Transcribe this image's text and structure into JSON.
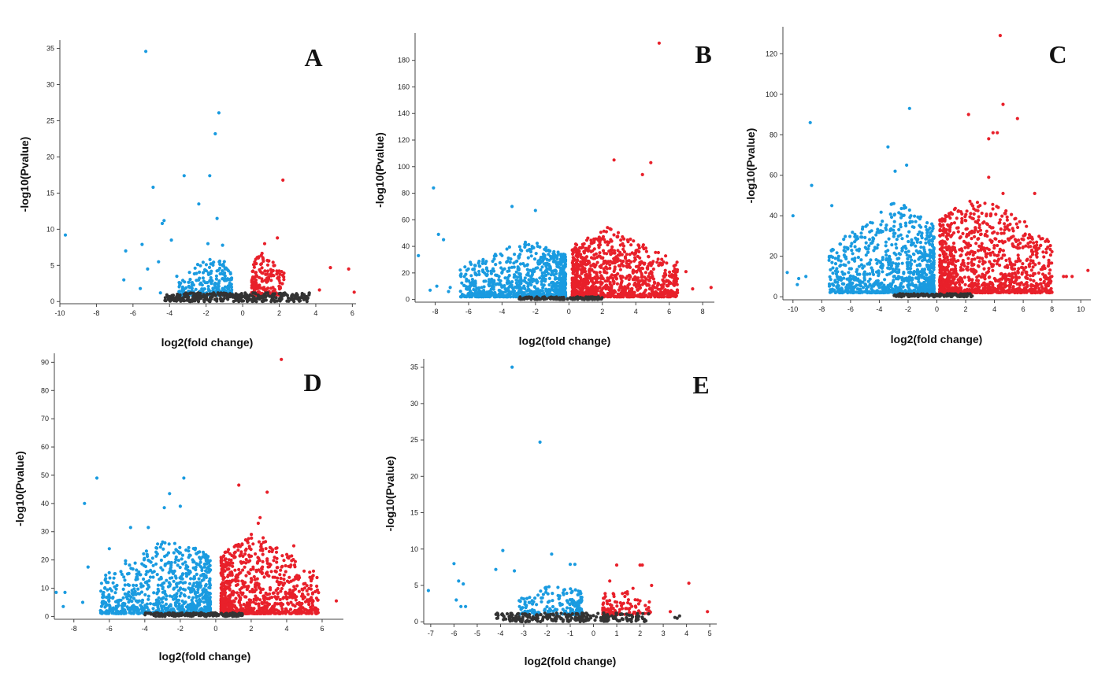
{
  "colors": {
    "down": "#1a9be0",
    "up": "#e8202a",
    "ns": "#333333",
    "axis": "#444444"
  },
  "chart_data": [
    {
      "type": "scatter",
      "panel_label": "A",
      "xlabel": "log2(fold change)",
      "ylabel": "-log10(Pvalue)",
      "xlim": [
        -10,
        6.2
      ],
      "ylim": [
        -0.3,
        35.5
      ],
      "xticks": [
        -10,
        -8,
        -6,
        -4,
        -2,
        0,
        2,
        4,
        6
      ],
      "yticks": [
        0,
        5,
        10,
        15,
        20,
        25,
        30,
        35
      ],
      "legend": "none",
      "points": [
        [
          -5.3,
          34.6,
          "down"
        ],
        [
          -1.3,
          26.1,
          "down"
        ],
        [
          -1.5,
          23.2,
          "down"
        ],
        [
          -1.8,
          17.4,
          "down"
        ],
        [
          -3.2,
          17.4,
          "down"
        ],
        [
          2.2,
          16.8,
          "up"
        ],
        [
          -4.9,
          15.8,
          "down"
        ],
        [
          -2.4,
          13.5,
          "down"
        ],
        [
          -1.4,
          11.5,
          "down"
        ],
        [
          -4.3,
          11.2,
          "down"
        ],
        [
          -9.7,
          9.2,
          "down"
        ],
        [
          1.9,
          8.8,
          "up"
        ],
        [
          -6.4,
          7.0,
          "down"
        ],
        [
          -4.4,
          10.8,
          "down"
        ],
        [
          -3.9,
          8.5,
          "down"
        ],
        [
          -1.9,
          8.0,
          "down"
        ],
        [
          -1.1,
          7.8,
          "down"
        ],
        [
          1.2,
          8.0,
          "up"
        ],
        [
          -5.5,
          7.9,
          "down"
        ],
        [
          -6.5,
          3.0,
          "down"
        ],
        [
          -4.6,
          5.5,
          "down"
        ],
        [
          -3.6,
          3.5,
          "down"
        ],
        [
          -5.6,
          1.8,
          "down"
        ],
        [
          -5.2,
          4.5,
          "down"
        ],
        [
          4.8,
          4.7,
          "up"
        ],
        [
          5.8,
          4.5,
          "up"
        ],
        [
          6.1,
          1.3,
          "up"
        ],
        [
          4.2,
          1.6,
          "up"
        ],
        [
          -4.5,
          1.2,
          "down"
        ]
      ],
      "clouds": [
        {
          "class": "down",
          "x0": -3.5,
          "x1": -0.6,
          "yMin": 0.9,
          "yMax": 6.5,
          "n": 260,
          "shape": "vee"
        },
        {
          "class": "up",
          "x0": 0.5,
          "x1": 2.3,
          "yMin": 0.9,
          "yMax": 7.0,
          "n": 190,
          "shape": "vee"
        },
        {
          "class": "ns",
          "x0": -4.3,
          "x1": 3.7,
          "yMin": 0,
          "yMax": 1.2,
          "n": 320,
          "shape": "band"
        }
      ]
    },
    {
      "type": "scatter",
      "panel_label": "B",
      "xlabel": "log2(fold change)",
      "ylabel": "-log10(Pvalue)",
      "xlim": [
        -9.2,
        8.7
      ],
      "ylim": [
        -2,
        197
      ],
      "xticks": [
        -8,
        -6,
        -4,
        -2,
        0,
        2,
        4,
        6,
        8
      ],
      "yticks": [
        0,
        20,
        40,
        60,
        80,
        100,
        120,
        140,
        160,
        180
      ],
      "legend": "none",
      "points": [
        [
          5.4,
          193,
          "up"
        ],
        [
          2.7,
          105,
          "up"
        ],
        [
          4.9,
          103,
          "up"
        ],
        [
          4.4,
          94,
          "up"
        ],
        [
          -8.1,
          84,
          "down"
        ],
        [
          -3.4,
          70,
          "down"
        ],
        [
          -2.0,
          67,
          "down"
        ],
        [
          -7.8,
          49,
          "down"
        ],
        [
          -9.0,
          33,
          "down"
        ],
        [
          -7.5,
          45,
          "down"
        ],
        [
          6.0,
          12,
          "up"
        ],
        [
          7.0,
          21,
          "up"
        ],
        [
          8.5,
          9,
          "up"
        ],
        [
          7.4,
          8,
          "up"
        ],
        [
          -7.9,
          10,
          "down"
        ],
        [
          -8.3,
          7,
          "down"
        ],
        [
          -7.2,
          6,
          "down"
        ],
        [
          -7.1,
          9,
          "down"
        ],
        [
          -5.9,
          28,
          "down"
        ],
        [
          -6.1,
          22,
          "down"
        ],
        [
          6.4,
          18,
          "up"
        ],
        [
          5.5,
          27,
          "up"
        ]
      ],
      "clouds": [
        {
          "class": "down",
          "x0": -6.5,
          "x1": -0.2,
          "yMin": 2,
          "yMax": 46,
          "n": 900,
          "shape": "vee"
        },
        {
          "class": "up",
          "x0": 0.2,
          "x1": 6.5,
          "yMin": 2,
          "yMax": 55,
          "n": 1050,
          "shape": "vee"
        },
        {
          "class": "ns",
          "x0": -3.0,
          "x1": 2.0,
          "yMin": 0,
          "yMax": 2.0,
          "n": 150,
          "shape": "band"
        }
      ]
    },
    {
      "type": "scatter",
      "panel_label": "C",
      "xlabel": "log2(fold change)",
      "ylabel": "-log10(Pvalue)",
      "xlim": [
        -10.7,
        10.7
      ],
      "ylim": [
        -1.5,
        131
      ],
      "xticks": [
        -10,
        -8,
        -6,
        -4,
        -2,
        0,
        2,
        4,
        6,
        8,
        10
      ],
      "yticks": [
        0,
        20,
        40,
        60,
        80,
        100,
        120
      ],
      "legend": "none",
      "points": [
        [
          4.4,
          129,
          "up"
        ],
        [
          4.6,
          95,
          "up"
        ],
        [
          -1.9,
          93,
          "down"
        ],
        [
          2.2,
          90,
          "up"
        ],
        [
          5.6,
          88,
          "up"
        ],
        [
          -8.8,
          86,
          "down"
        ],
        [
          4.2,
          81,
          "up"
        ],
        [
          3.9,
          81,
          "up"
        ],
        [
          3.6,
          78,
          "up"
        ],
        [
          -3.4,
          74,
          "down"
        ],
        [
          -2.1,
          65,
          "down"
        ],
        [
          -2.9,
          62,
          "down"
        ],
        [
          3.6,
          59,
          "up"
        ],
        [
          -8.7,
          55,
          "down"
        ],
        [
          -10.0,
          40,
          "down"
        ],
        [
          6.8,
          51,
          "up"
        ],
        [
          4.6,
          51,
          "up"
        ],
        [
          10.5,
          13,
          "up"
        ],
        [
          9.4,
          10,
          "up"
        ],
        [
          8.8,
          10,
          "up"
        ],
        [
          9.0,
          10,
          "up"
        ],
        [
          -10.4,
          12,
          "down"
        ],
        [
          -9.6,
          9,
          "down"
        ],
        [
          -9.7,
          6,
          "down"
        ],
        [
          -9.1,
          10,
          "down"
        ],
        [
          -7.3,
          45,
          "down"
        ],
        [
          6.1,
          37,
          "up"
        ],
        [
          6.8,
          25,
          "up"
        ]
      ],
      "clouds": [
        {
          "class": "down",
          "x0": -7.5,
          "x1": -0.2,
          "yMin": 2,
          "yMax": 48,
          "n": 950,
          "shape": "vee"
        },
        {
          "class": "up",
          "x0": 0.2,
          "x1": 8.0,
          "yMin": 2,
          "yMax": 52,
          "n": 1150,
          "shape": "vee"
        },
        {
          "class": "ns",
          "x0": -3.0,
          "x1": 2.5,
          "yMin": 0,
          "yMax": 1.5,
          "n": 140,
          "shape": "band"
        }
      ]
    },
    {
      "type": "scatter",
      "panel_label": "D",
      "xlabel": "log2(fold change)",
      "ylabel": "-log10(Pvalue)",
      "xlim": [
        -9.1,
        7.2
      ],
      "ylim": [
        -1,
        91.5
      ],
      "xticks": [
        -8,
        -6,
        -4,
        -2,
        0,
        2,
        4,
        6
      ],
      "yticks": [
        0,
        10,
        20,
        30,
        40,
        50,
        60,
        70,
        80,
        90
      ],
      "legend": "none",
      "points": [
        [
          3.7,
          91,
          "up"
        ],
        [
          -6.7,
          49,
          "down"
        ],
        [
          -1.8,
          49,
          "down"
        ],
        [
          1.3,
          46.5,
          "up"
        ],
        [
          2.9,
          44,
          "up"
        ],
        [
          -2.6,
          43.5,
          "down"
        ],
        [
          -7.4,
          40,
          "down"
        ],
        [
          -2.9,
          38.5,
          "down"
        ],
        [
          -2.0,
          39,
          "down"
        ],
        [
          2.5,
          35,
          "up"
        ],
        [
          2.4,
          33,
          "up"
        ],
        [
          -4.8,
          31.5,
          "down"
        ],
        [
          -3.8,
          31.5,
          "down"
        ],
        [
          -9.0,
          8.5,
          "down"
        ],
        [
          -8.6,
          3.5,
          "down"
        ],
        [
          -8.5,
          8.5,
          "down"
        ],
        [
          6.8,
          5.5,
          "up"
        ],
        [
          5.5,
          14.5,
          "up"
        ],
        [
          4.4,
          25,
          "up"
        ],
        [
          -7.2,
          17.5,
          "down"
        ],
        [
          -7.5,
          5,
          "down"
        ],
        [
          -6.0,
          24,
          "down"
        ]
      ],
      "clouds": [
        {
          "class": "down",
          "x0": -6.5,
          "x1": -0.3,
          "yMin": 1,
          "yMax": 29,
          "n": 850,
          "shape": "vee"
        },
        {
          "class": "up",
          "x0": 0.3,
          "x1": 5.8,
          "yMin": 1,
          "yMax": 30,
          "n": 900,
          "shape": "vee"
        },
        {
          "class": "ns",
          "x0": -4.0,
          "x1": 1.5,
          "yMin": 0,
          "yMax": 1.3,
          "n": 160,
          "shape": "band"
        }
      ]
    },
    {
      "type": "scatter",
      "panel_label": "E",
      "xlabel": "log2(fold change)",
      "ylabel": "-log10(Pvalue)",
      "xlim": [
        -7.3,
        5.3
      ],
      "ylim": [
        -0.3,
        35.5
      ],
      "xticks": [
        -7,
        -6,
        -5,
        -4,
        -3,
        -2,
        -1,
        0,
        1,
        2,
        3,
        4,
        5
      ],
      "yticks": [
        0,
        5,
        10,
        15,
        20,
        25,
        30,
        35
      ],
      "legend": "none",
      "points": [
        [
          -3.5,
          35,
          "down"
        ],
        [
          -2.3,
          24.7,
          "down"
        ],
        [
          -3.9,
          9.8,
          "down"
        ],
        [
          -1.8,
          9.3,
          "down"
        ],
        [
          -6.0,
          8.0,
          "down"
        ],
        [
          1.0,
          7.8,
          "up"
        ],
        [
          2.0,
          7.8,
          "up"
        ],
        [
          2.1,
          7.8,
          "up"
        ],
        [
          -1.0,
          7.9,
          "down"
        ],
        [
          -0.8,
          7.9,
          "down"
        ],
        [
          -4.2,
          7.2,
          "down"
        ],
        [
          -3.4,
          7.0,
          "down"
        ],
        [
          -5.8,
          5.6,
          "down"
        ],
        [
          -5.6,
          5.2,
          "down"
        ],
        [
          -7.1,
          4.3,
          "down"
        ],
        [
          -5.9,
          3.0,
          "down"
        ],
        [
          -5.7,
          2.1,
          "down"
        ],
        [
          -5.5,
          2.1,
          "down"
        ],
        [
          4.1,
          5.3,
          "up"
        ],
        [
          4.9,
          1.4,
          "up"
        ],
        [
          3.3,
          1.4,
          "up"
        ],
        [
          2.5,
          5.0,
          "up"
        ],
        [
          1.7,
          4.6,
          "up"
        ],
        [
          0.7,
          5.6,
          "up"
        ],
        [
          3.6,
          0.5,
          "ns"
        ],
        [
          3.7,
          0.8,
          "ns"
        ],
        [
          3.5,
          0.6,
          "ns"
        ]
      ],
      "clouds": [
        {
          "class": "down",
          "x0": -3.2,
          "x1": -0.5,
          "yMin": 1,
          "yMax": 5.5,
          "n": 190,
          "shape": "vee"
        },
        {
          "class": "up",
          "x0": 0.4,
          "x1": 2.5,
          "yMin": 1,
          "yMax": 4.8,
          "n": 110,
          "shape": "vee"
        },
        {
          "class": "ns",
          "x0": -4.2,
          "x1": 2.4,
          "yMin": 0,
          "yMax": 1.2,
          "n": 240,
          "shape": "band"
        }
      ]
    }
  ]
}
